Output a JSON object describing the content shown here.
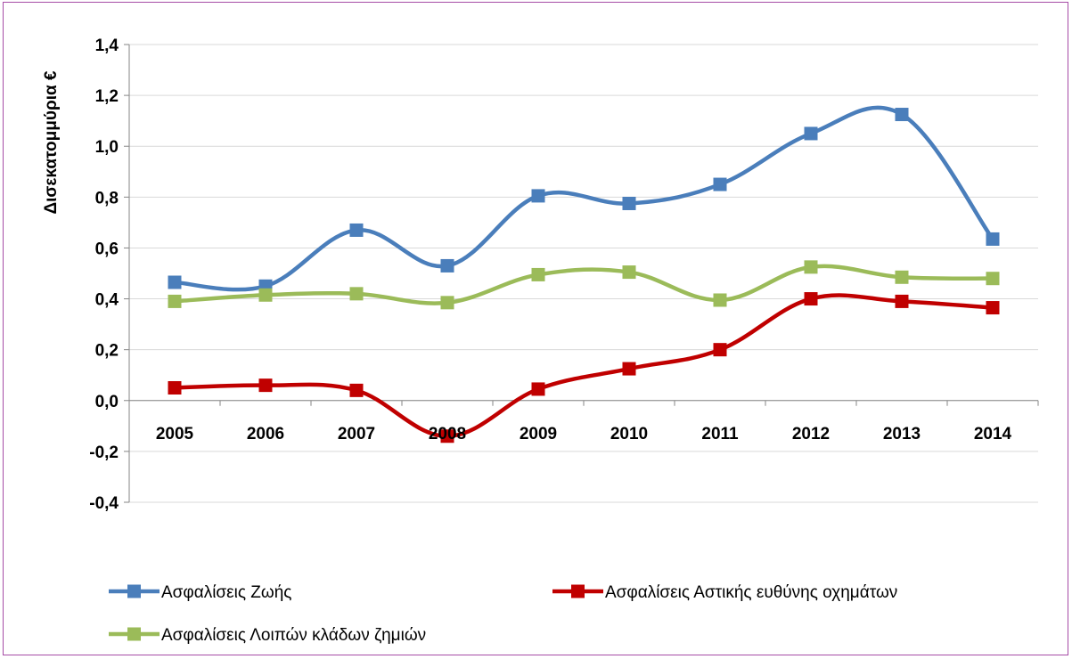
{
  "chart_data": {
    "type": "line",
    "title": "",
    "xlabel": "",
    "ylabel": "Δισεκατομμύρια €",
    "categories": [
      "2005",
      "2006",
      "2007",
      "2008",
      "2009",
      "2010",
      "2011",
      "2012",
      "2013",
      "2014"
    ],
    "y_ticks": [
      "1,4",
      "1,2",
      "1,0",
      "0,8",
      "0,6",
      "0,4",
      "0,2",
      "0,0",
      "-0,2",
      "-0,4"
    ],
    "ylim": [
      -0.4,
      1.4
    ],
    "grid": true,
    "legend_position": "bottom",
    "series": [
      {
        "name": "Ασφαλίσεις Ζωής",
        "color": "#4a7ebb",
        "values": [
          0.465,
          0.45,
          0.67,
          0.53,
          0.805,
          0.775,
          0.85,
          1.05,
          1.125,
          0.635
        ]
      },
      {
        "name": "Ασφαλίσεις Αστικής ευθύνης οχημάτων",
        "color": "#c00000",
        "values": [
          0.05,
          0.06,
          0.04,
          -0.14,
          0.045,
          0.125,
          0.2,
          0.4,
          0.39,
          0.365
        ]
      },
      {
        "name": "Ασφαλίσεις Λοιπών κλάδων ζημιών",
        "color": "#9bbb59",
        "values": [
          0.39,
          0.415,
          0.42,
          0.385,
          0.495,
          0.505,
          0.395,
          0.525,
          0.485,
          0.48
        ]
      }
    ]
  }
}
